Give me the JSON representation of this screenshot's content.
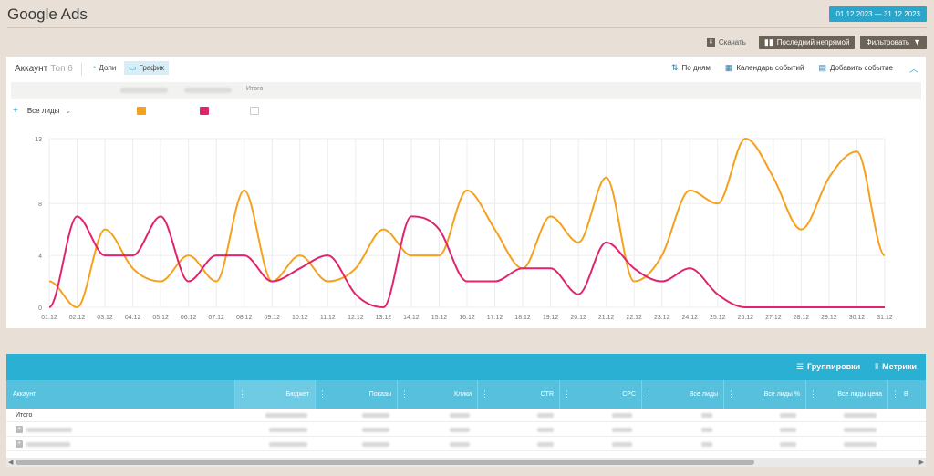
{
  "header": {
    "title": "Google Ads",
    "date_range": "01.12.2023 — 31.12.2023"
  },
  "toolbar": {
    "download": "Скачать",
    "attribution": "Последний непрямой",
    "filter": "Фильтровать"
  },
  "panel": {
    "title": "Аккаунт",
    "top_label": "Топ 6",
    "tabs": [
      {
        "label": "Доли",
        "active": false
      },
      {
        "label": "График",
        "active": true
      }
    ],
    "actions": {
      "by_days": "По дням",
      "event_calendar": "Календарь событий",
      "add_event": "Добавить событие"
    },
    "series_total_label": "Итого",
    "metric_select": "Все лиды"
  },
  "chart_data": {
    "type": "line",
    "x": [
      "01.12",
      "02.12",
      "03.12",
      "04.12",
      "05.12",
      "06.12",
      "07.12",
      "08.12",
      "09.12",
      "10.12",
      "11.12",
      "12.12",
      "13.12",
      "14.12",
      "15.12",
      "16.12",
      "17.12",
      "18.12",
      "19.12",
      "20.12",
      "21.12",
      "22.12",
      "23.12",
      "24.12",
      "25.12",
      "26.12",
      "27.12",
      "28.12",
      "29.12",
      "30.12",
      "31.12"
    ],
    "yticks": [
      0,
      4,
      8,
      13
    ],
    "ylim": [
      0,
      13
    ],
    "grid": true,
    "series": [
      {
        "color": "#f5a11e",
        "values": [
          2,
          0,
          6,
          3,
          2,
          4,
          2,
          9,
          2,
          4,
          2,
          3,
          6,
          4,
          4,
          9,
          6,
          3,
          7,
          5,
          10,
          2,
          4,
          9,
          8,
          13,
          10,
          6,
          10,
          12,
          4
        ]
      },
      {
        "color": "#e0246e",
        "values": [
          0,
          7,
          4,
          4,
          7,
          2,
          4,
          4,
          2,
          3,
          4,
          1,
          0,
          7,
          6,
          2,
          2,
          3,
          3,
          1,
          5,
          3,
          2,
          3,
          1,
          0,
          0,
          0,
          0,
          0,
          0
        ]
      }
    ]
  },
  "table": {
    "actions": {
      "groupings": "Группировки",
      "metrics": "Метрики"
    },
    "columns": [
      "Аккаунт",
      "Бюджет",
      "Показы",
      "Клики",
      "CTR",
      "CPC",
      "Все лиды",
      "Все лиды %",
      "Все лиды цена",
      "В"
    ],
    "sorted_column": "Бюджет",
    "rows": [
      {
        "name": "Итого",
        "expandable": false
      }
    ]
  }
}
